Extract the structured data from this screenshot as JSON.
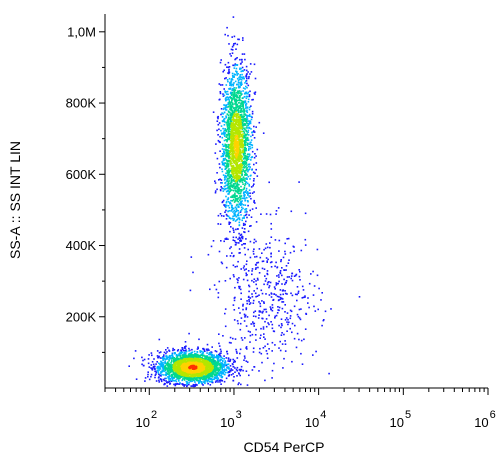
{
  "chart_data": {
    "type": "scatter",
    "subtype": "flow-cytometry density dot plot",
    "xlabel": "CD54 PerCP",
    "ylabel": "SS-A :: SS INT LIN",
    "x_scale": "log",
    "xlim": [
      30,
      1000000
    ],
    "x_ticks": [
      {
        "value": 100,
        "base": "10",
        "exp": "2"
      },
      {
        "value": 1000,
        "base": "10",
        "exp": "3"
      },
      {
        "value": 10000,
        "base": "10",
        "exp": "4"
      },
      {
        "value": 100000,
        "base": "10",
        "exp": "5"
      },
      {
        "value": 1000000,
        "base": "10",
        "exp": "6"
      }
    ],
    "y_scale": "linear",
    "ylim": [
      0,
      1050000
    ],
    "y_ticks": [
      {
        "value": 200000,
        "label": "200K"
      },
      {
        "value": 400000,
        "label": "400K"
      },
      {
        "value": 600000,
        "label": "600K"
      },
      {
        "value": 800000,
        "label": "800K"
      },
      {
        "value": 1000000,
        "label": "1,0M"
      }
    ],
    "grid": false,
    "legend": "none",
    "colormap": [
      "#1a1aff",
      "#00b4ff",
      "#00d890",
      "#b4e600",
      "#ffd200",
      "#ff3000"
    ],
    "populations": [
      {
        "center_x": 320,
        "center_y": 60000,
        "sx_log": 0.2,
        "sy": 22000,
        "n": 2600,
        "peak_color": "#ff3000"
      },
      {
        "center_x": 1050,
        "center_y": 680000,
        "sx_log": 0.09,
        "sy": 110000,
        "n": 2200,
        "peak_color": "#ffd200"
      },
      {
        "center_x": 2500,
        "center_y": 250000,
        "sx_log": 0.3,
        "sy": 100000,
        "n": 500,
        "peak_color": "#1a1aff"
      }
    ]
  }
}
